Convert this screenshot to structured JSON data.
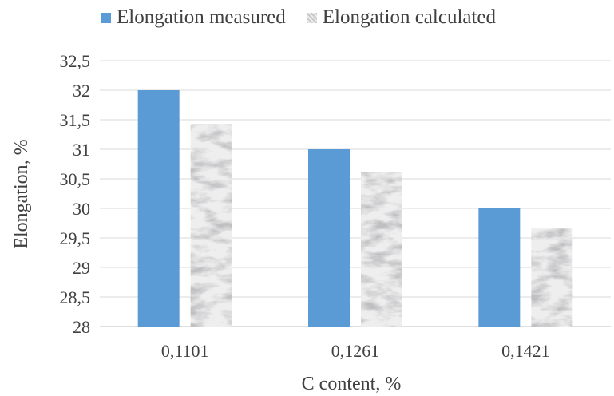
{
  "chart_data": {
    "type": "bar",
    "title": "",
    "xlabel": "C content, %",
    "ylabel": "Elongation, %",
    "categories": [
      "0,1101",
      "0,1261",
      "0,1421"
    ],
    "series": [
      {
        "name": "Elongation measured",
        "values": [
          32,
          31,
          30
        ],
        "color": "#5b9bd5",
        "pattern": "solid"
      },
      {
        "name": "Elongation calculated",
        "values": [
          31.43,
          30.62,
          29.66
        ],
        "color": "#d9d9d9",
        "pattern": "marble-texture"
      }
    ],
    "ylim": [
      28,
      32.5
    ],
    "yticks": [
      28,
      28.5,
      29,
      29.5,
      30,
      30.5,
      31,
      31.5,
      32,
      32.5
    ],
    "ytick_labels": [
      "28",
      "28,5",
      "29",
      "29,5",
      "30",
      "30,5",
      "31",
      "31,5",
      "32",
      "32,5"
    ],
    "grid": "horizontal",
    "legend_position": "top"
  }
}
